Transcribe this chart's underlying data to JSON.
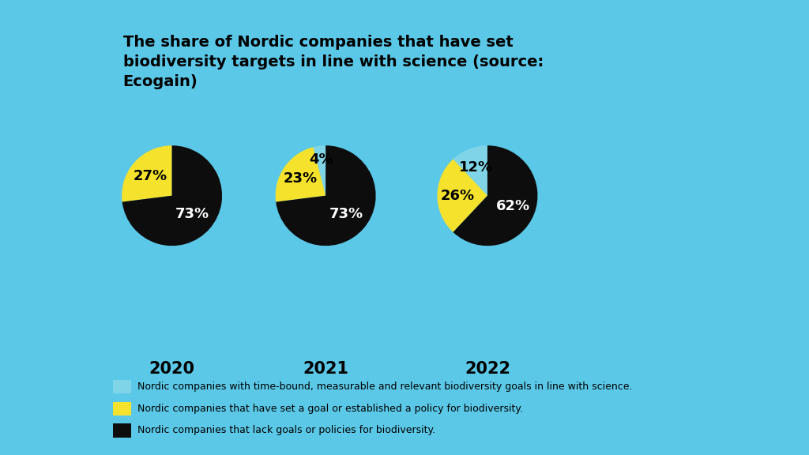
{
  "title": "The share of Nordic companies that have set\nbiodiversity targets in line with science (source:\nEcogain)",
  "years": [
    "2020",
    "2021",
    "2022"
  ],
  "pie_data": [
    [
      0,
      27,
      73
    ],
    [
      4,
      23,
      73
    ],
    [
      12,
      26,
      62
    ]
  ],
  "colors": [
    "#7fd4e8",
    "#f5e22d",
    "#0d0d0d"
  ],
  "pie_labels": [
    [
      "27%",
      "73%"
    ],
    [
      "4%",
      "23%",
      "73%"
    ],
    [
      "12%",
      "26%",
      "62%"
    ]
  ],
  "pie_label_colors": [
    [
      "#000000",
      "#ffffff"
    ],
    [
      "#000000",
      "#000000",
      "#ffffff"
    ],
    [
      "#000000",
      "#000000",
      "#ffffff"
    ]
  ],
  "legend_labels": [
    "Nordic companies with time-bound, measurable and relevant biodiversity goals in line with science.",
    "Nordic companies that have set a goal or established a policy for biodiversity.",
    "Nordic companies that lack goals or policies for biodiversity."
  ],
  "card_bg": "#ffffff",
  "outer_bg": "#5bc8e8",
  "text_color": "#000000",
  "title_fontsize": 14,
  "label_fontsize": 13,
  "year_fontsize": 15,
  "legend_fontsize": 9,
  "pie_startangles": [
    138.6,
    90,
    90
  ],
  "pie_counterclocks": [
    false,
    false,
    false
  ]
}
